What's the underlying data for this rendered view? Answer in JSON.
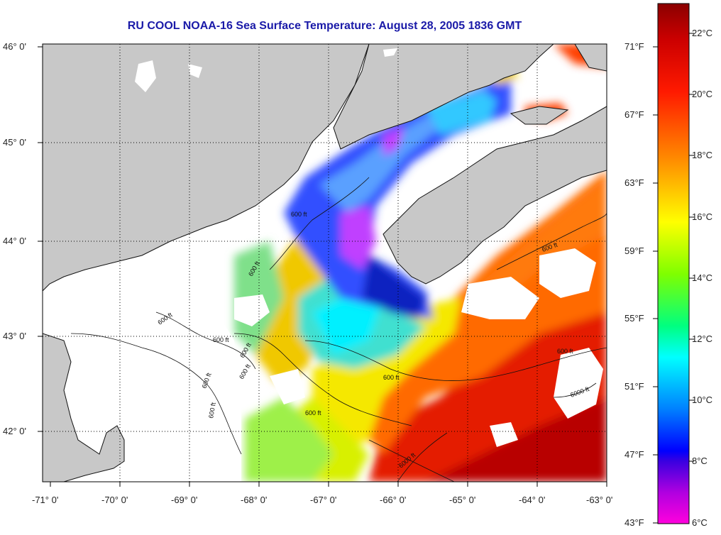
{
  "title": "RU COOL  NOAA-16  Sea Surface Temperature:  August 28, 2005 1836 GMT",
  "latitude_labels": [
    "46° 0'",
    "45° 0'",
    "44° 0'",
    "43° 0'",
    "42° 0'"
  ],
  "longitude_labels": [
    "-71° 0'",
    "-70° 0'",
    "-69° 0'",
    "-68° 0'",
    "-67° 0'",
    "-66° 0'",
    "-65° 0'",
    "-64° 0'",
    "-63° 0'"
  ],
  "colorbar": {
    "fahrenheit_labels": [
      "71°F",
      "67°F",
      "63°F",
      "59°F",
      "55°F",
      "51°F",
      "47°F",
      "43°F"
    ],
    "celsius_labels": [
      "22°C",
      "20°C",
      "18°C",
      "16°C",
      "14°C",
      "12°C",
      "10°C",
      "8°C",
      "6°C"
    ],
    "colors": [
      "#8b0000",
      "#ff0000",
      "#ff8c00",
      "#ffff00",
      "#00ff00",
      "#00ffff",
      "#0000ff",
      "#8000ff",
      "#ff00ff"
    ]
  },
  "contour_labels": [
    "600 ft",
    "600 ft",
    "600 ft",
    "600 ft",
    "600 ft",
    "600 ft",
    "600 ft",
    "600 ft",
    "600 ft",
    "600 ft",
    "6000 ft",
    "600 ft",
    "600 ft",
    "6000 ft"
  ],
  "colors": {
    "land": "#c8c8c8",
    "cloud": "#ffffff",
    "grid": "#000000",
    "title": "#1a1aa8"
  }
}
